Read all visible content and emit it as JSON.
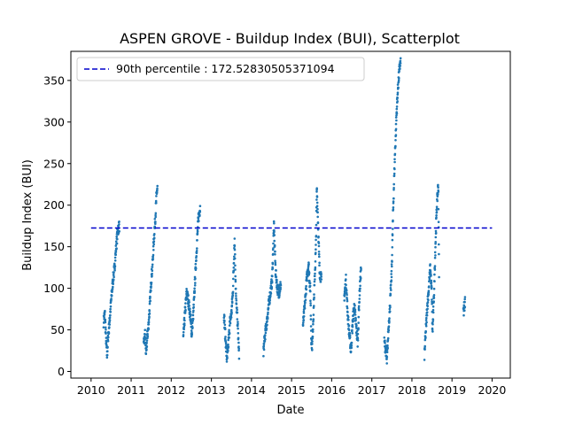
{
  "chart_data": {
    "type": "scatter",
    "title": "ASPEN GROVE - Buildup Index (BUI), Scatterplot",
    "xlabel": "Date",
    "ylabel": "Buildup Index (BUI)",
    "xlim": [
      "2009-07-01",
      "2020-06-15"
    ],
    "ylim": [
      -8,
      385
    ],
    "x_ticks": [
      "2010",
      "2011",
      "2012",
      "2013",
      "2014",
      "2015",
      "2016",
      "2017",
      "2018",
      "2019",
      "2020"
    ],
    "y_ticks": [
      0,
      50,
      100,
      150,
      200,
      250,
      300,
      350
    ],
    "grid": false,
    "legend": "upper left",
    "series": [
      {
        "type": "scatter",
        "color": "#1f77b4",
        "seasons": [
          {
            "start": "2010-04-25",
            "end": "2010-09-15",
            "profile": [
              [
                0,
                60
              ],
              [
                0.08,
                70
              ],
              [
                0.15,
                40
              ],
              [
                0.22,
                18
              ],
              [
                0.28,
                40
              ],
              [
                0.38,
                60
              ],
              [
                0.5,
                90
              ],
              [
                0.6,
                110
              ],
              [
                0.7,
                125
              ],
              [
                0.8,
                150
              ],
              [
                0.9,
                170
              ],
              [
                1.0,
                175
              ]
            ]
          },
          {
            "start": "2011-04-25",
            "end": "2011-08-28",
            "profile": [
              [
                0,
                30
              ],
              [
                0.1,
                45
              ],
              [
                0.18,
                20
              ],
              [
                0.25,
                40
              ],
              [
                0.35,
                55
              ],
              [
                0.45,
                80
              ],
              [
                0.55,
                110
              ],
              [
                0.65,
                130
              ],
              [
                0.75,
                160
              ],
              [
                0.85,
                185
              ],
              [
                0.95,
                215
              ],
              [
                1.0,
                220
              ]
            ]
          },
          {
            "start": "2012-04-20",
            "end": "2012-09-20",
            "profile": [
              [
                0,
                40
              ],
              [
                0.1,
                70
              ],
              [
                0.2,
                95
              ],
              [
                0.3,
                85
              ],
              [
                0.4,
                70
              ],
              [
                0.5,
                45
              ],
              [
                0.6,
                70
              ],
              [
                0.7,
                110
              ],
              [
                0.8,
                150
              ],
              [
                0.9,
                185
              ],
              [
                1.0,
                197
              ]
            ]
          },
          {
            "start": "2013-04-25",
            "end": "2013-09-10",
            "profile": [
              [
                0,
                70
              ],
              [
                0.1,
                40
              ],
              [
                0.2,
                12
              ],
              [
                0.3,
                35
              ],
              [
                0.4,
                60
              ],
              [
                0.5,
                70
              ],
              [
                0.6,
                100
              ],
              [
                0.7,
                160
              ],
              [
                0.8,
                85
              ],
              [
                0.9,
                60
              ],
              [
                1.0,
                18
              ]
            ]
          },
          {
            "start": "2014-04-20",
            "end": "2014-09-25",
            "profile": [
              [
                0,
                25
              ],
              [
                0.1,
                45
              ],
              [
                0.2,
                60
              ],
              [
                0.3,
                80
              ],
              [
                0.4,
                95
              ],
              [
                0.5,
                110
              ],
              [
                0.6,
                175
              ],
              [
                0.65,
                150
              ],
              [
                0.7,
                120
              ],
              [
                0.8,
                100
              ],
              [
                0.9,
                95
              ],
              [
                1.0,
                105
              ]
            ]
          },
          {
            "start": "2015-04-15",
            "end": "2015-09-30",
            "profile": [
              [
                0,
                55
              ],
              [
                0.1,
                80
              ],
              [
                0.2,
                110
              ],
              [
                0.3,
                130
              ],
              [
                0.4,
                95
              ],
              [
                0.45,
                40
              ],
              [
                0.5,
                30
              ],
              [
                0.6,
                90
              ],
              [
                0.7,
                150
              ],
              [
                0.75,
                220
              ],
              [
                0.8,
                190
              ],
              [
                0.9,
                120
              ],
              [
                1.0,
                110
              ]
            ]
          },
          {
            "start": "2016-04-25",
            "end": "2016-09-25",
            "profile": [
              [
                0,
                90
              ],
              [
                0.1,
                110
              ],
              [
                0.2,
                70
              ],
              [
                0.3,
                45
              ],
              [
                0.4,
                25
              ],
              [
                0.5,
                60
              ],
              [
                0.6,
                80
              ],
              [
                0.7,
                55
              ],
              [
                0.8,
                35
              ],
              [
                0.9,
                90
              ],
              [
                1.0,
                125
              ]
            ]
          },
          {
            "start": "2017-04-25",
            "end": "2017-09-20",
            "profile": [
              [
                0,
                35
              ],
              [
                0.1,
                25
              ],
              [
                0.15,
                10
              ],
              [
                0.25,
                50
              ],
              [
                0.35,
                80
              ],
              [
                0.45,
                120
              ],
              [
                0.55,
                200
              ],
              [
                0.65,
                260
              ],
              [
                0.75,
                310
              ],
              [
                0.85,
                345
              ],
              [
                0.95,
                368
              ],
              [
                1.0,
                370
              ]
            ]
          },
          {
            "start": "2018-04-25",
            "end": "2018-09-05",
            "profile": [
              [
                0,
                20
              ],
              [
                0.1,
                50
              ],
              [
                0.2,
                80
              ],
              [
                0.3,
                100
              ],
              [
                0.4,
                125
              ],
              [
                0.5,
                95
              ],
              [
                0.55,
                45
              ],
              [
                0.65,
                90
              ],
              [
                0.75,
                150
              ],
              [
                0.85,
                200
              ],
              [
                0.95,
                225
              ],
              [
                1.0,
                120
              ]
            ]
          },
          {
            "start": "2019-04-15",
            "end": "2019-04-30",
            "profile": [
              [
                0,
                72
              ],
              [
                0.5,
                78
              ],
              [
                1.0,
                84
              ]
            ]
          }
        ]
      },
      {
        "type": "hline",
        "name": "90th percentile : 172.52830505371094",
        "y": 172.52830505371094,
        "x_range": [
          "2010-01-01",
          "2020-01-01"
        ],
        "color": "#0000cc",
        "style": "dashed"
      }
    ]
  }
}
